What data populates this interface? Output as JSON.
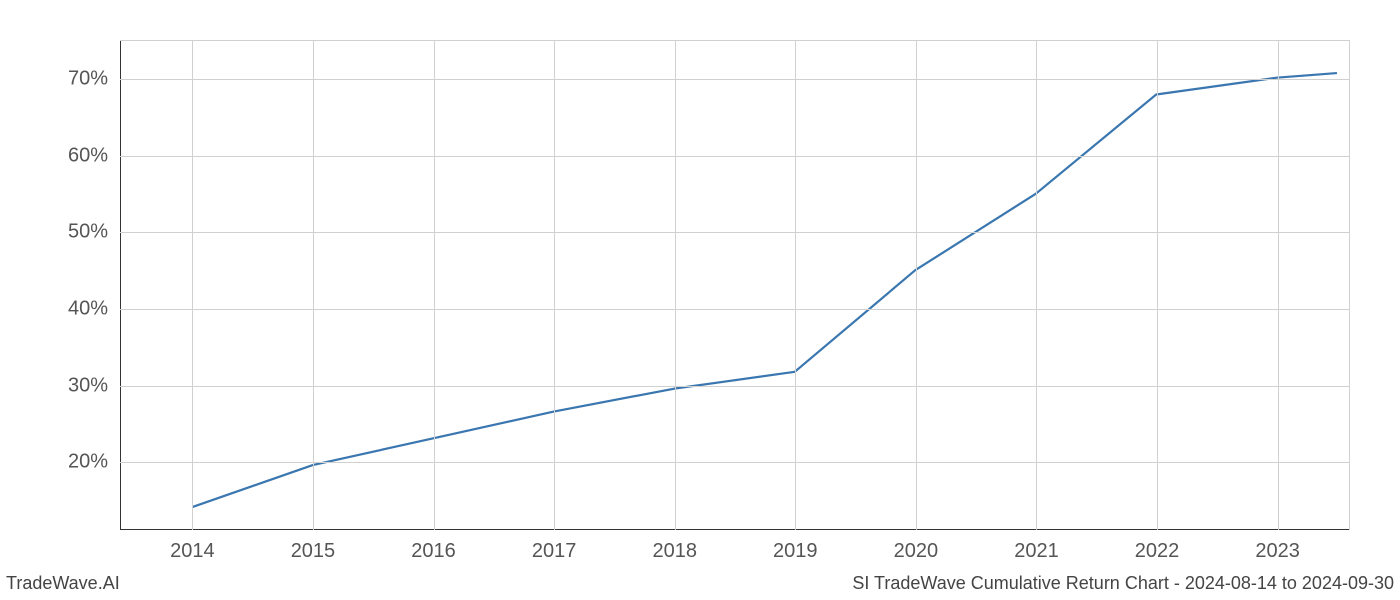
{
  "chart": {
    "type": "line",
    "x_values": [
      2014,
      2015,
      2016,
      2017,
      2018,
      2019,
      2020,
      2021,
      2022,
      2023,
      2023.5
    ],
    "y_values": [
      14,
      19.5,
      23,
      26.5,
      29.5,
      31.7,
      45,
      55,
      68,
      70.2,
      70.8
    ],
    "line_color": "#3a76af",
    "line_width": 2.2,
    "xlim": [
      2013.4,
      2023.6
    ],
    "ylim": [
      11,
      75
    ],
    "x_ticks": [
      2014,
      2015,
      2016,
      2017,
      2018,
      2019,
      2020,
      2021,
      2022,
      2023
    ],
    "x_tick_labels": [
      "2014",
      "2015",
      "2016",
      "2017",
      "2018",
      "2019",
      "2020",
      "2021",
      "2022",
      "2023"
    ],
    "y_ticks": [
      20,
      30,
      40,
      50,
      60,
      70
    ],
    "y_tick_labels": [
      "20%",
      "30%",
      "40%",
      "50%",
      "60%",
      "70%"
    ],
    "tick_fontsize": 20,
    "tick_color": "#555555",
    "grid_color": "#d0d0d0",
    "background_color": "#ffffff",
    "spine_color": "#333333"
  },
  "footer": {
    "left": "TradeWave.AI",
    "right": "SI TradeWave Cumulative Return Chart - 2024-08-14 to 2024-09-30",
    "fontsize": 18,
    "color": "#444444"
  }
}
